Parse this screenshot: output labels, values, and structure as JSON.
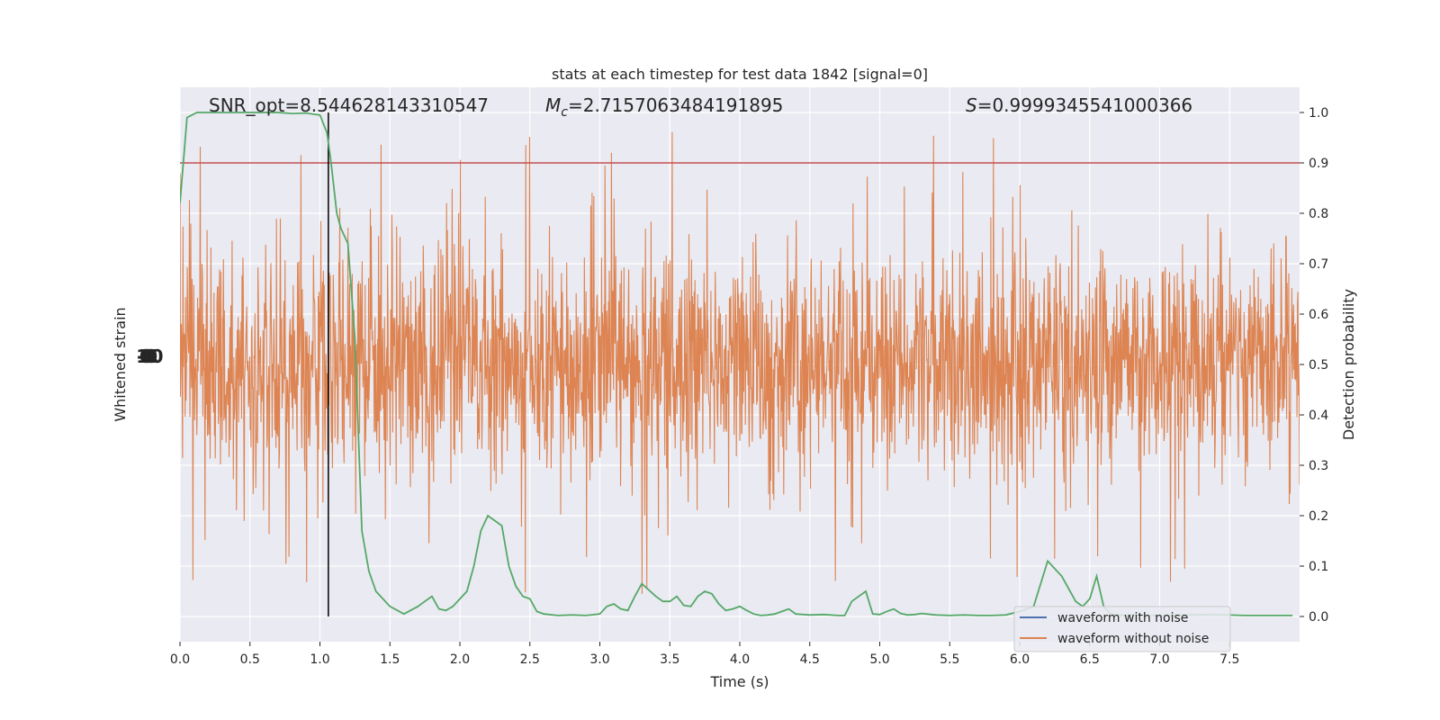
{
  "chart_data": {
    "type": "line",
    "title": "stats at each timestep for test data 1842 [signal=0]",
    "xlabel": "Time (s)",
    "ylabel_left": "Whitened strain",
    "ylabel_right": "Detection probability",
    "xlim": [
      0,
      8
    ],
    "ylim_right": [
      -0.05,
      1.05
    ],
    "x_ticks": [
      0.0,
      0.5,
      1.0,
      1.5,
      2.0,
      2.5,
      3.0,
      3.5,
      4.0,
      4.5,
      5.0,
      5.5,
      6.0,
      6.5,
      7.0,
      7.5
    ],
    "y_ticks_right": [
      0.0,
      0.1,
      0.2,
      0.3,
      0.4,
      0.5,
      0.6,
      0.7,
      0.8,
      0.9,
      1.0
    ],
    "annotations": {
      "snr": "SNR_opt=8.544628143310547",
      "mc": "=2.7157063484191895",
      "s": "=0.9999345541000366"
    },
    "threshold": 0.9,
    "threshold_color": "#c44e52",
    "marker_time": 1.06,
    "legend_location": "lower right",
    "series": [
      {
        "name": "waveform with noise",
        "color": "#4c72b0"
      },
      {
        "name": "waveform without noise",
        "color": "#dd8452"
      },
      {
        "name": "",
        "color": "#55a868",
        "x": [
          0.0,
          0.05,
          0.12,
          0.2,
          0.3,
          0.4,
          0.5,
          0.6,
          0.7,
          0.8,
          0.9,
          1.0,
          1.05,
          1.08,
          1.12,
          1.15,
          1.2,
          1.25,
          1.3,
          1.35,
          1.4,
          1.5,
          1.6,
          1.7,
          1.75,
          1.8,
          1.85,
          1.9,
          1.95,
          2.0,
          2.05,
          2.1,
          2.15,
          2.2,
          2.25,
          2.3,
          2.35,
          2.4,
          2.45,
          2.5,
          2.55,
          2.6,
          2.7,
          2.8,
          2.9,
          3.0,
          3.05,
          3.1,
          3.15,
          3.2,
          3.25,
          3.3,
          3.4,
          3.45,
          3.5,
          3.55,
          3.6,
          3.65,
          3.7,
          3.75,
          3.8,
          3.85,
          3.9,
          3.95,
          4.0,
          4.05,
          4.1,
          4.15,
          4.2,
          4.25,
          4.3,
          4.35,
          4.4,
          4.5,
          4.6,
          4.7,
          4.75,
          4.8,
          4.9,
          4.95,
          5.0,
          5.05,
          5.1,
          5.15,
          5.2,
          5.25,
          5.3,
          5.4,
          5.5,
          5.6,
          5.7,
          5.8,
          5.9,
          6.0,
          6.1,
          6.2,
          6.3,
          6.4,
          6.45,
          6.5,
          6.55,
          6.6,
          6.65,
          6.7,
          6.75,
          6.8,
          6.85,
          6.9,
          7.0,
          7.2,
          7.4,
          7.6,
          7.8,
          7.95
        ],
        "values": [
          0.82,
          0.99,
          1.0,
          1.0,
          1.0,
          1.0,
          1.0,
          1.0,
          1.0,
          0.998,
          0.999,
          0.995,
          0.96,
          0.9,
          0.8,
          0.77,
          0.74,
          0.55,
          0.17,
          0.09,
          0.05,
          0.02,
          0.005,
          0.02,
          0.03,
          0.04,
          0.015,
          0.012,
          0.02,
          0.035,
          0.05,
          0.1,
          0.17,
          0.2,
          0.19,
          0.18,
          0.1,
          0.06,
          0.04,
          0.035,
          0.01,
          0.005,
          0.002,
          0.003,
          0.002,
          0.005,
          0.02,
          0.025,
          0.015,
          0.012,
          0.04,
          0.065,
          0.04,
          0.03,
          0.03,
          0.04,
          0.022,
          0.02,
          0.04,
          0.05,
          0.045,
          0.025,
          0.012,
          0.015,
          0.02,
          0.012,
          0.005,
          0.002,
          0.003,
          0.005,
          0.01,
          0.015,
          0.005,
          0.003,
          0.004,
          0.002,
          0.002,
          0.03,
          0.05,
          0.005,
          0.004,
          0.01,
          0.015,
          0.006,
          0.003,
          0.004,
          0.006,
          0.003,
          0.002,
          0.003,
          0.002,
          0.002,
          0.003,
          0.01,
          0.02,
          0.11,
          0.08,
          0.03,
          0.02,
          0.035,
          0.08,
          0.02,
          0.005,
          0.003,
          0.002,
          0.003,
          0.003,
          0.002,
          0.002,
          0.003,
          0.004,
          0.002,
          0.002,
          0.002
        ]
      }
    ],
    "left_axis_ticklabels_overlapping": "-1.0 0.0 1.0"
  }
}
